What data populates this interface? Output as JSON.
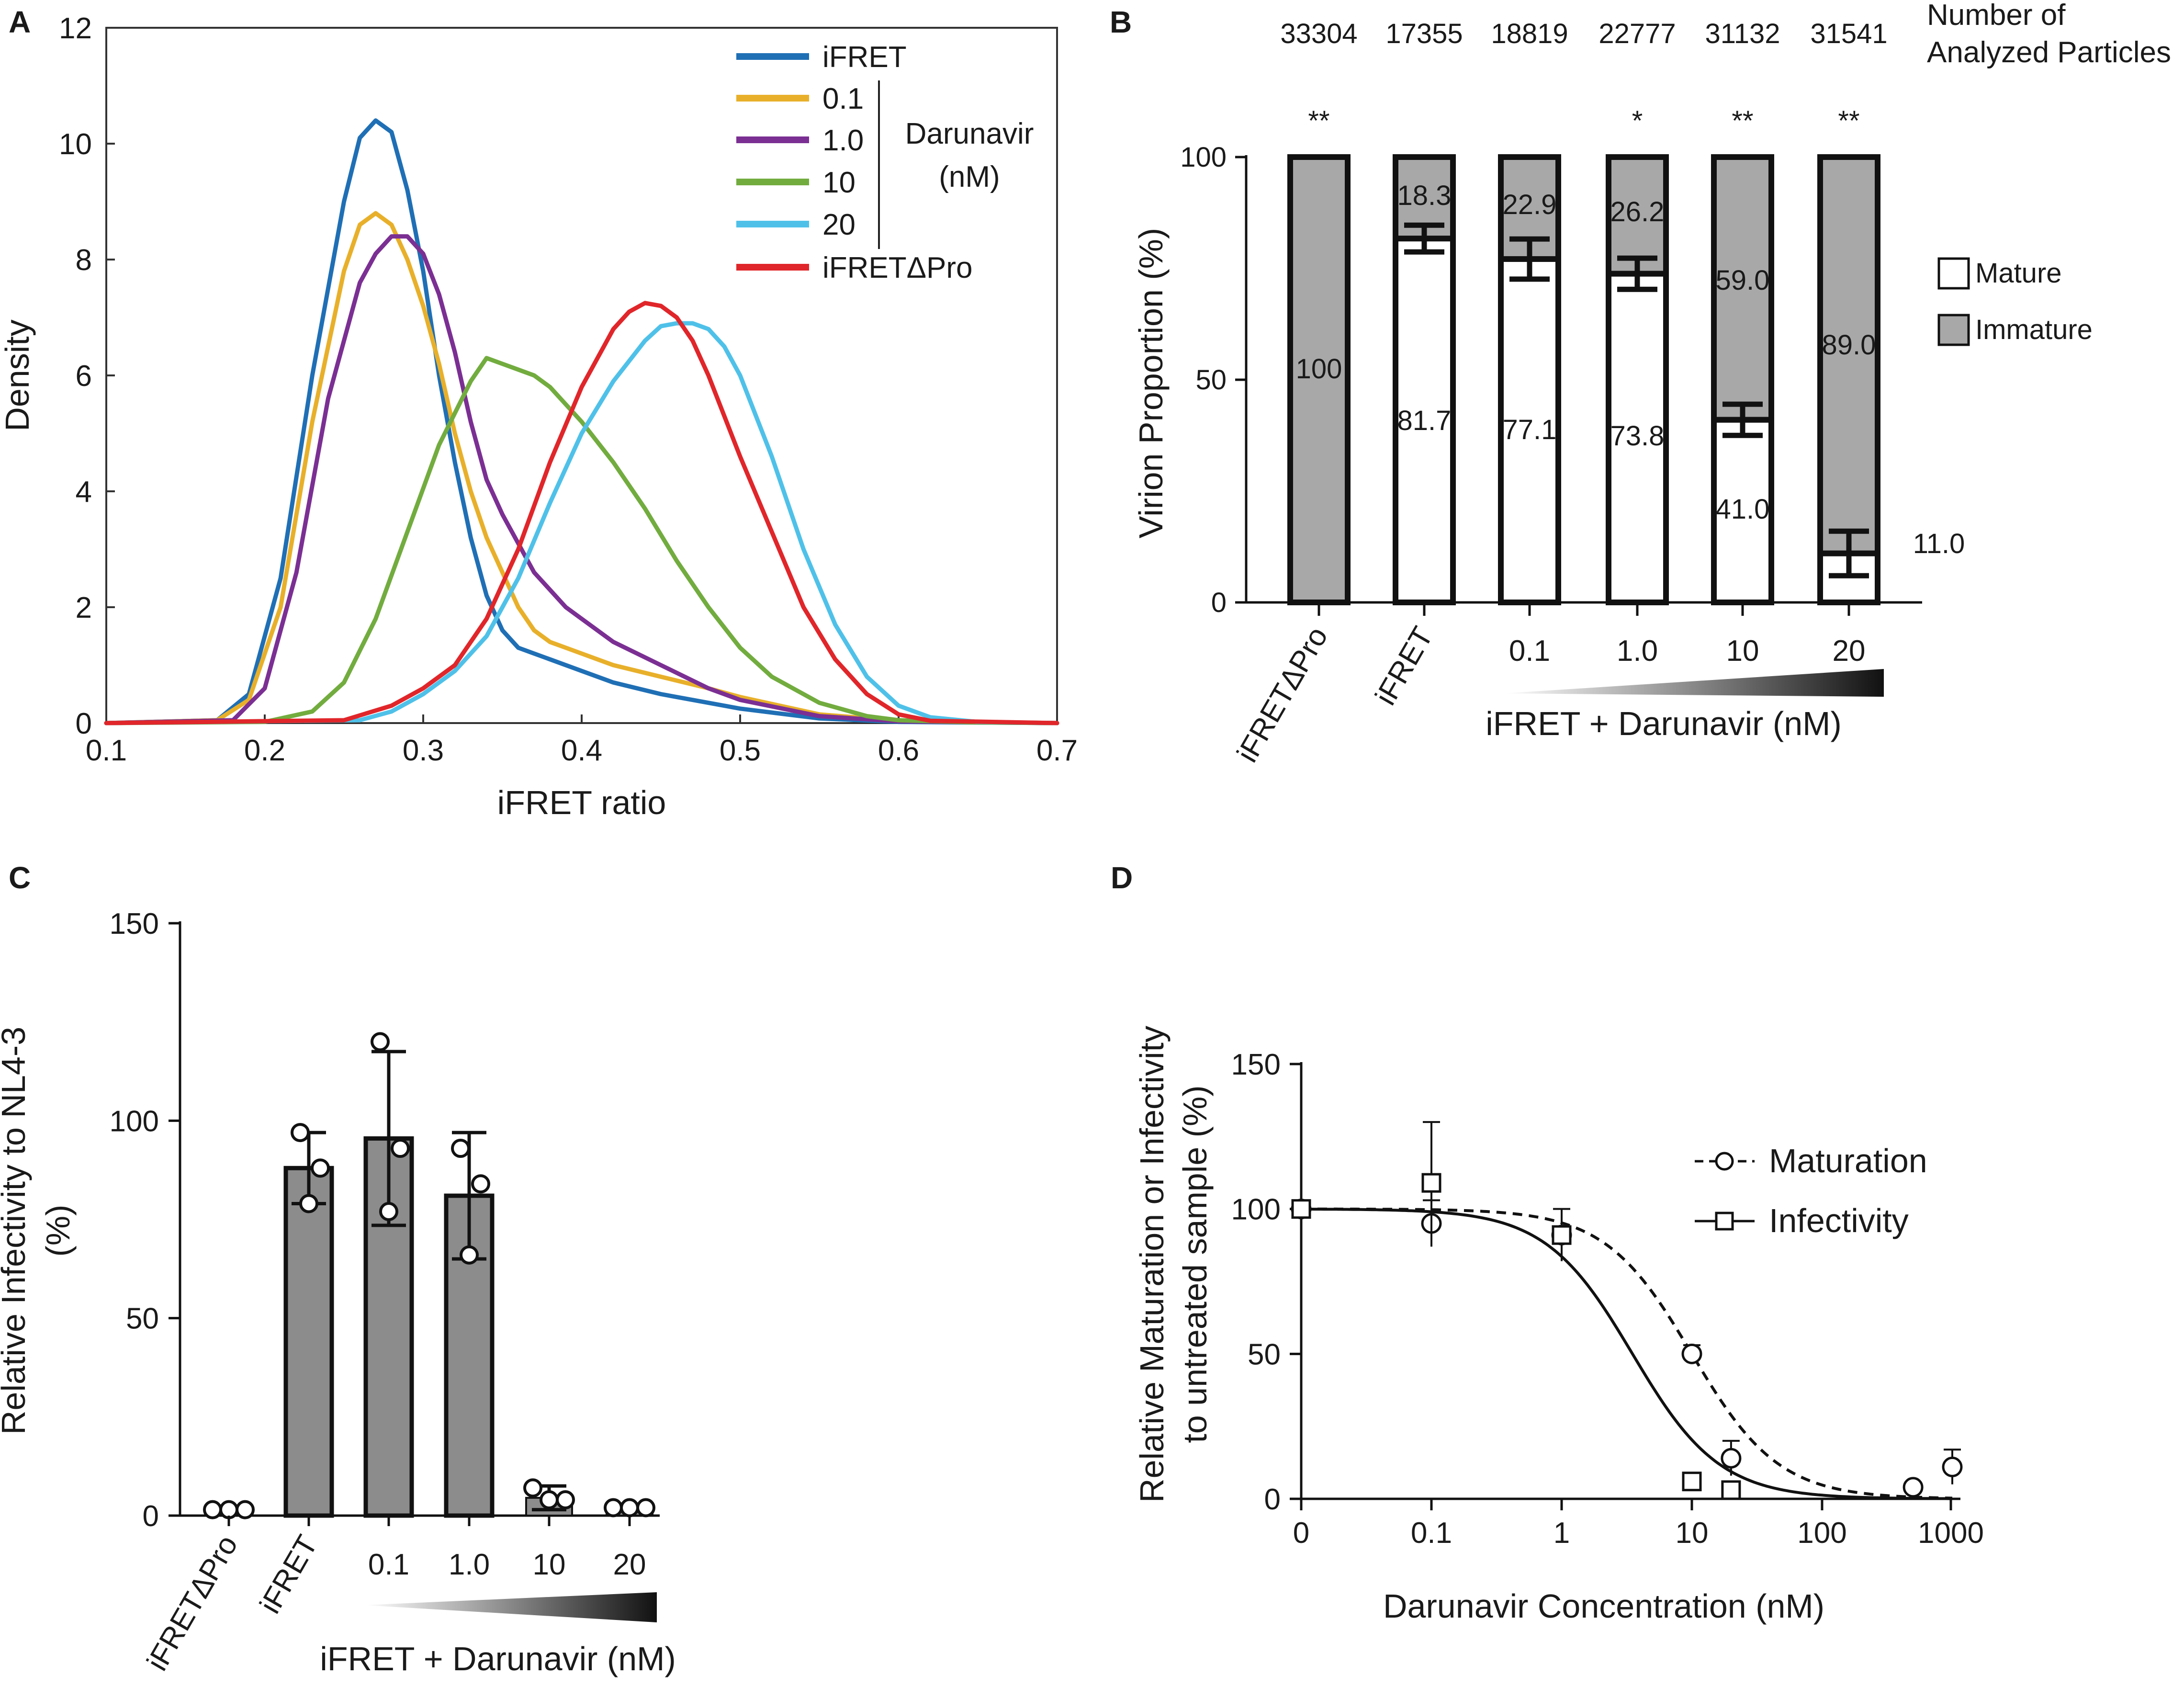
{
  "panels": {
    "A": {
      "label": "A"
    },
    "B": {
      "label": "B"
    },
    "C": {
      "label": "C"
    },
    "D": {
      "label": "D"
    }
  },
  "chart_data": [
    {
      "id": "A",
      "type": "line",
      "xlabel": "iFRET ratio",
      "ylabel": "Density",
      "xlim": [
        0.1,
        0.7
      ],
      "ylim": [
        0,
        12
      ],
      "xticks": [
        "0.1",
        "0.2",
        "0.3",
        "0.4",
        "0.5",
        "0.6",
        "0.7"
      ],
      "yticks": [
        "0",
        "2",
        "4",
        "6",
        "8",
        "10",
        "12"
      ],
      "legend_group_label": [
        "Darunavir",
        "(nM)"
      ],
      "series": [
        {
          "name": "iFRET",
          "color": "#1f6fb5",
          "x": [
            0.1,
            0.17,
            0.19,
            0.21,
            0.23,
            0.25,
            0.26,
            0.27,
            0.28,
            0.29,
            0.3,
            0.31,
            0.32,
            0.33,
            0.34,
            0.35,
            0.36,
            0.37,
            0.38,
            0.39,
            0.4,
            0.42,
            0.45,
            0.5,
            0.55,
            0.6,
            0.7
          ],
          "y": [
            0,
            0.05,
            0.5,
            2.5,
            6.0,
            9.0,
            10.1,
            10.4,
            10.2,
            9.2,
            7.8,
            6.0,
            4.5,
            3.2,
            2.2,
            1.6,
            1.3,
            1.2,
            1.1,
            1.0,
            0.9,
            0.7,
            0.5,
            0.25,
            0.08,
            0.02,
            0
          ]
        },
        {
          "name": "0.1",
          "color": "#e8b02a",
          "x": [
            0.1,
            0.17,
            0.19,
            0.21,
            0.23,
            0.25,
            0.26,
            0.27,
            0.28,
            0.29,
            0.3,
            0.31,
            0.32,
            0.33,
            0.34,
            0.35,
            0.36,
            0.37,
            0.38,
            0.39,
            0.4,
            0.42,
            0.45,
            0.48,
            0.5,
            0.55,
            0.6,
            0.7
          ],
          "y": [
            0,
            0.05,
            0.4,
            2.0,
            5.2,
            7.8,
            8.6,
            8.8,
            8.6,
            8.0,
            7.2,
            6.2,
            5.0,
            4.0,
            3.2,
            2.6,
            2.0,
            1.6,
            1.4,
            1.3,
            1.2,
            1.0,
            0.8,
            0.6,
            0.45,
            0.15,
            0.04,
            0
          ]
        },
        {
          "name": "1.0",
          "color": "#7b2f93",
          "x": [
            0.1,
            0.18,
            0.2,
            0.22,
            0.24,
            0.26,
            0.27,
            0.28,
            0.29,
            0.3,
            0.31,
            0.32,
            0.33,
            0.34,
            0.35,
            0.36,
            0.37,
            0.38,
            0.39,
            0.4,
            0.42,
            0.45,
            0.48,
            0.5,
            0.55,
            0.6,
            0.7
          ],
          "y": [
            0,
            0.05,
            0.6,
            2.6,
            5.6,
            7.6,
            8.1,
            8.4,
            8.4,
            8.1,
            7.4,
            6.4,
            5.2,
            4.2,
            3.6,
            3.1,
            2.6,
            2.3,
            2.0,
            1.8,
            1.4,
            1.0,
            0.6,
            0.4,
            0.12,
            0.03,
            0
          ]
        },
        {
          "name": "10",
          "color": "#72ac3f",
          "x": [
            0.1,
            0.2,
            0.23,
            0.25,
            0.27,
            0.29,
            0.31,
            0.33,
            0.34,
            0.35,
            0.36,
            0.37,
            0.38,
            0.39,
            0.4,
            0.42,
            0.44,
            0.46,
            0.48,
            0.5,
            0.52,
            0.55,
            0.58,
            0.6,
            0.65,
            0.7
          ],
          "y": [
            0,
            0.02,
            0.2,
            0.7,
            1.8,
            3.3,
            4.8,
            5.9,
            6.3,
            6.2,
            6.1,
            6.0,
            5.8,
            5.5,
            5.2,
            4.5,
            3.7,
            2.8,
            2.0,
            1.3,
            0.8,
            0.35,
            0.12,
            0.05,
            0.01,
            0
          ]
        },
        {
          "name": "20",
          "color": "#4fc1e9",
          "x": [
            0.1,
            0.26,
            0.28,
            0.3,
            0.32,
            0.34,
            0.36,
            0.38,
            0.4,
            0.42,
            0.44,
            0.45,
            0.46,
            0.47,
            0.48,
            0.49,
            0.5,
            0.52,
            0.54,
            0.56,
            0.58,
            0.6,
            0.62,
            0.65,
            0.7
          ],
          "y": [
            0,
            0.05,
            0.2,
            0.5,
            0.9,
            1.5,
            2.5,
            3.8,
            5.0,
            5.9,
            6.6,
            6.85,
            6.9,
            6.9,
            6.8,
            6.5,
            6.0,
            4.6,
            3.0,
            1.7,
            0.8,
            0.3,
            0.1,
            0.02,
            0
          ]
        },
        {
          "name": "iFRETΔPro",
          "color": "#e0262a",
          "x": [
            0.1,
            0.25,
            0.28,
            0.3,
            0.32,
            0.34,
            0.36,
            0.38,
            0.4,
            0.42,
            0.43,
            0.44,
            0.45,
            0.46,
            0.47,
            0.48,
            0.49,
            0.5,
            0.52,
            0.54,
            0.56,
            0.58,
            0.6,
            0.62,
            0.7
          ],
          "y": [
            0,
            0.05,
            0.3,
            0.6,
            1.0,
            1.8,
            3.0,
            4.5,
            5.8,
            6.8,
            7.1,
            7.25,
            7.2,
            7.0,
            6.6,
            6.0,
            5.3,
            4.6,
            3.3,
            2.0,
            1.1,
            0.5,
            0.15,
            0.04,
            0
          ]
        }
      ]
    },
    {
      "id": "B",
      "type": "bar",
      "stacked": true,
      "ylabel": "Virion Proportion (%)",
      "ylim": [
        0,
        100
      ],
      "yticks": [
        "0",
        "50",
        "100"
      ],
      "categories": [
        "iFRETΔPro",
        "iFRET",
        "0.1",
        "1.0",
        "10",
        "20"
      ],
      "xgroup_label": "iFRET + Darunavir (nM)",
      "particles_header": [
        "Number of",
        "Analyzed Particles"
      ],
      "particles": [
        "33304",
        "17355",
        "18819",
        "22777",
        "31132",
        "31541"
      ],
      "significance": [
        "**",
        "",
        "",
        "*",
        "**",
        "**"
      ],
      "series": [
        {
          "name": "Mature",
          "color": "#ffffff",
          "values": [
            0,
            81.7,
            77.1,
            73.8,
            41.0,
            11.0
          ],
          "labels": [
            "",
            "81.7",
            "77.1",
            "73.8",
            "41.0",
            "11.0"
          ],
          "err": [
            0,
            3,
            4.5,
            3.5,
            3.5,
            5
          ]
        },
        {
          "name": "Immature",
          "color": "#a8a8a8",
          "values": [
            100,
            18.3,
            22.9,
            26.2,
            59.0,
            89.0
          ],
          "labels": [
            "100",
            "18.3",
            "22.9",
            "26.2",
            "59.0",
            "89.0"
          ]
        }
      ]
    },
    {
      "id": "C",
      "type": "bar",
      "ylabel": [
        "Relative Infectivity to NL4-3",
        "(%)"
      ],
      "ylim": [
        0,
        150
      ],
      "yticks": [
        "0",
        "50",
        "100",
        "150"
      ],
      "categories": [
        "iFRETΔPro",
        "iFRET",
        "0.1",
        "1.0",
        "10",
        "20"
      ],
      "xgroup_label": "iFRET + Darunavir (nM)",
      "values": [
        1.5,
        88,
        95.5,
        81,
        4.5,
        2
      ],
      "err": [
        0.5,
        9,
        22,
        16,
        3,
        0.5
      ],
      "points": [
        [
          1.5,
          1.5,
          1.5
        ],
        [
          97,
          88,
          79
        ],
        [
          120,
          93,
          77
        ],
        [
          93,
          84,
          66
        ],
        [
          7,
          4,
          4
        ],
        [
          2,
          2,
          2
        ]
      ],
      "bar_color": "#8c8c8c"
    },
    {
      "id": "D",
      "type": "scatter",
      "xlabel": "Darunavir Concentration (nM)",
      "ylabel": [
        "Relative Maturation or Infectivity",
        "to untreated sample (%)"
      ],
      "xscale": "log",
      "xticks": [
        "0",
        "0.1",
        "1",
        "10",
        "100",
        "1000"
      ],
      "ylim": [
        0,
        150
      ],
      "yticks": [
        "0",
        "50",
        "100",
        "150"
      ],
      "series": [
        {
          "name": "Maturation",
          "marker": "circle",
          "line": "dashed",
          "ic50": 10,
          "hill": 1.3,
          "x": [
            0,
            0.1,
            1,
            10,
            20,
            500,
            1000
          ],
          "y": [
            100,
            95,
            91,
            50,
            14,
            4,
            11
          ],
          "err": [
            0,
            8,
            0,
            3,
            6,
            0,
            6
          ]
        },
        {
          "name": "Infectivity",
          "marker": "square",
          "line": "solid",
          "ic50": 3.5,
          "hill": 1.3,
          "x": [
            0,
            0.1,
            1,
            10,
            20
          ],
          "y": [
            100,
            109,
            91,
            6,
            3
          ],
          "err": [
            0,
            21,
            9,
            0,
            0
          ]
        }
      ]
    }
  ]
}
